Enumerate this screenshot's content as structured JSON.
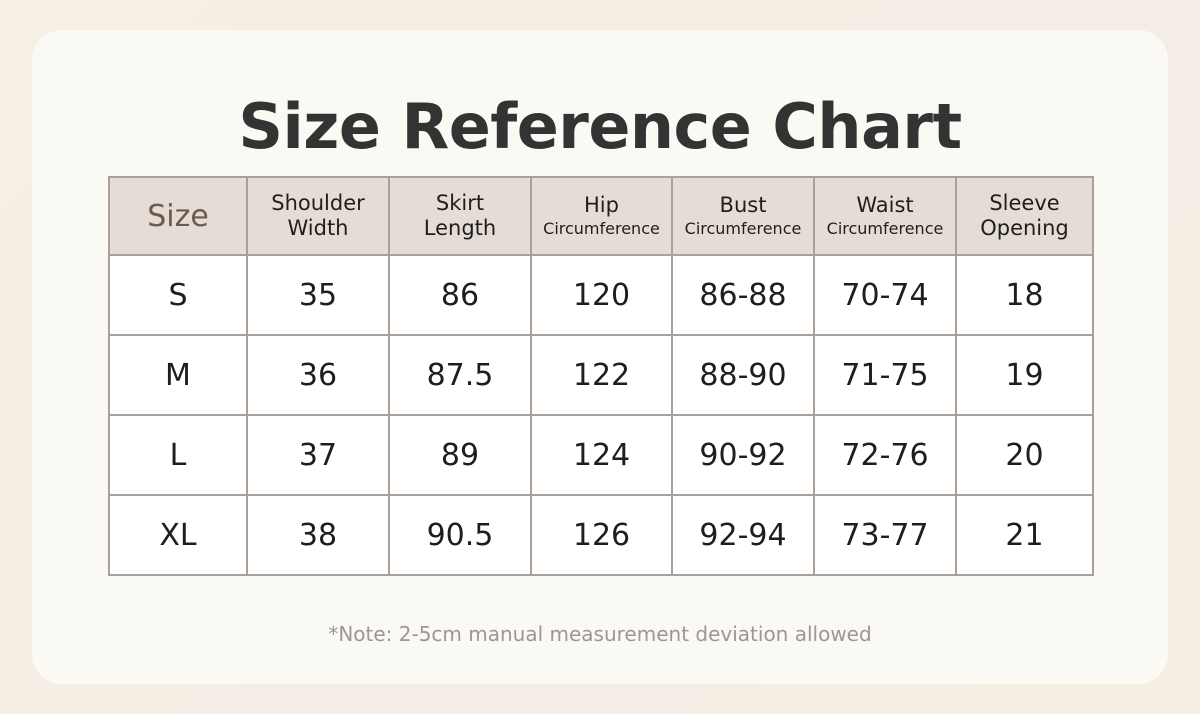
{
  "title": "Size Reference Chart",
  "table": {
    "headers": [
      [
        "Size"
      ],
      [
        "Shoulder",
        "Width"
      ],
      [
        "Skirt",
        "Length"
      ],
      [
        "Hip",
        "Circumference"
      ],
      [
        "Bust",
        "Circumference"
      ],
      [
        "Waist",
        "Circumference"
      ],
      [
        "Sleeve",
        "Opening"
      ]
    ],
    "rows": [
      [
        "S",
        "35",
        "86",
        "120",
        "86-88",
        "70-74",
        "18"
      ],
      [
        "M",
        "36",
        "87.5",
        "122",
        "88-90",
        "71-75",
        "19"
      ],
      [
        "L",
        "37",
        "89",
        "124",
        "90-92",
        "72-76",
        "20"
      ],
      [
        "XL",
        "38",
        "90.5",
        "126",
        "92-94",
        "73-77",
        "21"
      ]
    ]
  },
  "note": "*Note: 2-5cm manual measurement deviation allowed"
}
